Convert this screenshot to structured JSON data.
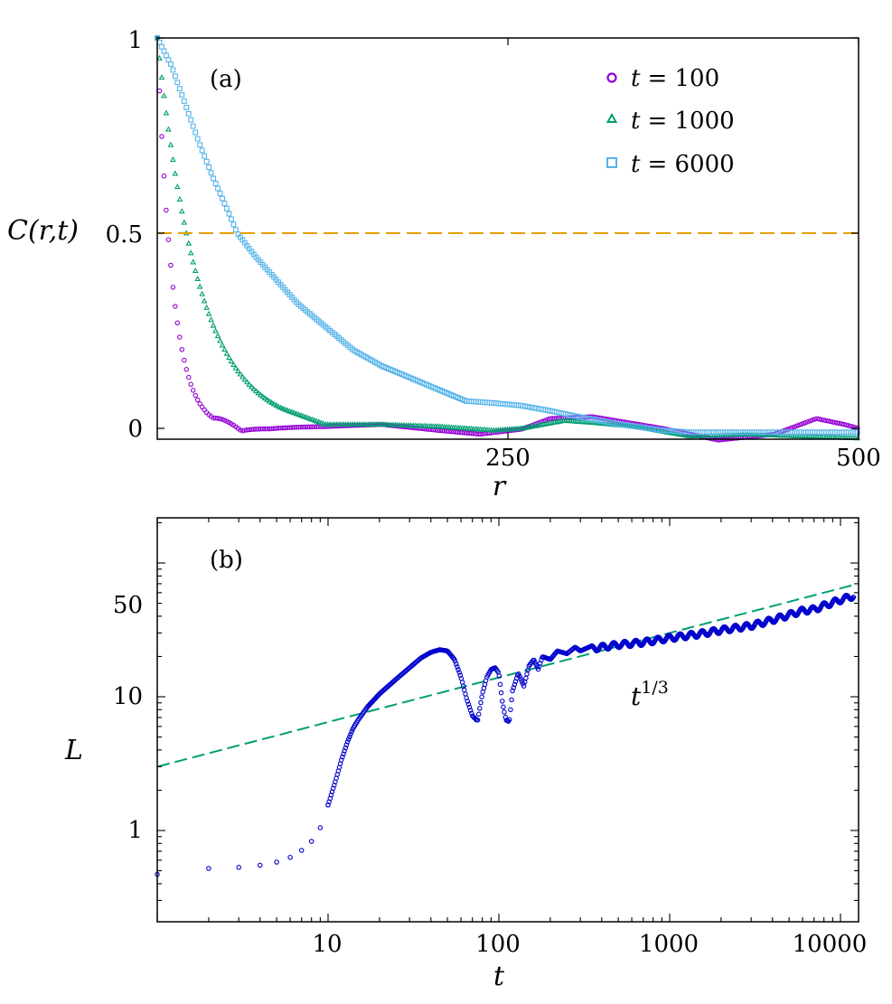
{
  "chart_data": [
    {
      "panel": "(a)",
      "type": "scatter",
      "xlabel": "r",
      "ylabel": "C(r,t)",
      "xlim": [
        0,
        500
      ],
      "ylim": [
        -0.02,
        1.0
      ],
      "xticks": [
        "250",
        "500"
      ],
      "yticks": [
        "0",
        "0.5",
        "1"
      ],
      "legend_position": "top-right",
      "reference_line": {
        "y": 0.5,
        "style": "dashed",
        "color": "#e69f00"
      },
      "series": [
        {
          "name": "t = 100",
          "label_var": "t",
          "label_val": "= 100",
          "marker": "circle",
          "color": "#9400d3",
          "r_scale": 11,
          "tail": [
            [
              40,
              0.09
            ],
            [
              60,
              0.01
            ],
            [
              80,
              0.003
            ],
            [
              120,
              0.005
            ],
            [
              160,
              0.01
            ],
            [
              200,
              -0.005
            ],
            [
              230,
              -0.015
            ],
            [
              260,
              -0.002
            ],
            [
              280,
              0.025
            ],
            [
              310,
              0.03
            ],
            [
              360,
              0.0
            ],
            [
              400,
              -0.03
            ],
            [
              440,
              -0.015
            ],
            [
              470,
              0.025
            ],
            [
              490,
              0.01
            ],
            [
              500,
              0.0
            ]
          ]
        },
        {
          "name": "t = 1000",
          "label_var": "t",
          "label_val": "= 1000",
          "marker": "triangle",
          "color": "#009e73",
          "r_scale": 30,
          "tail": [
            [
              90,
              0.05
            ],
            [
              120,
              0.01
            ],
            [
              160,
              0.01
            ],
            [
              200,
              0.005
            ],
            [
              240,
              -0.005
            ],
            [
              260,
              0.0
            ],
            [
              290,
              0.02
            ],
            [
              310,
              0.015
            ],
            [
              340,
              0.005
            ],
            [
              380,
              -0.02
            ],
            [
              420,
              -0.015
            ],
            [
              460,
              -0.02
            ],
            [
              500,
              -0.025
            ]
          ]
        },
        {
          "name": "t = 6000",
          "label_var": "t",
          "label_val": "= 6000",
          "marker": "square",
          "color": "#56b4e9",
          "points": [
            [
              0,
              1.0
            ],
            [
              10,
              0.93
            ],
            [
              20,
              0.83
            ],
            [
              30,
              0.73
            ],
            [
              40,
              0.64
            ],
            [
              50,
              0.56
            ],
            [
              57,
              0.5
            ],
            [
              70,
              0.44
            ],
            [
              85,
              0.38
            ],
            [
              100,
              0.32
            ],
            [
              120,
              0.26
            ],
            [
              140,
              0.2
            ],
            [
              160,
              0.16
            ],
            [
              180,
              0.13
            ],
            [
              200,
              0.1
            ],
            [
              220,
              0.07
            ],
            [
              240,
              0.065
            ],
            [
              260,
              0.058
            ],
            [
              280,
              0.045
            ],
            [
              300,
              0.03
            ],
            [
              330,
              0.01
            ],
            [
              360,
              -0.005
            ],
            [
              380,
              -0.01
            ],
            [
              420,
              -0.01
            ],
            [
              460,
              -0.01
            ],
            [
              500,
              -0.01
            ]
          ]
        }
      ]
    },
    {
      "panel": "(b)",
      "type": "scatter",
      "xscale": "log",
      "yscale": "log",
      "xlabel": "t",
      "ylabel": "L",
      "xlim": [
        1,
        12000
      ],
      "ylim": [
        0.25,
        200
      ],
      "xticks": [
        "10",
        "100",
        "1000",
        "10000"
      ],
      "yticks": [
        "1",
        "10",
        "50"
      ],
      "fit_label_base": "t",
      "fit_label_exp": "1/3",
      "fit_line": {
        "slope": 0.3333,
        "prefactor": 3.0,
        "style": "dashed",
        "color": "#009e73"
      },
      "series": [
        {
          "name": "L(t)",
          "marker": "circle",
          "color": "#0000cd",
          "early_points": [
            [
              1,
              0.47
            ],
            [
              2,
              0.52
            ],
            [
              3,
              0.53
            ],
            [
              4,
              0.55
            ],
            [
              5,
              0.58
            ],
            [
              6,
              0.63
            ],
            [
              7,
              0.71
            ],
            [
              8,
              0.83
            ],
            [
              9,
              1.05
            ],
            [
              10,
              1.55
            ],
            [
              11,
              2.3
            ],
            [
              12,
              3.4
            ],
            [
              13,
              4.6
            ],
            [
              14,
              5.8
            ],
            [
              15,
              6.7
            ],
            [
              17,
              8.4
            ],
            [
              20,
              10.5
            ],
            [
              25,
              13.5
            ],
            [
              30,
              16.5
            ],
            [
              35,
              19.5
            ],
            [
              40,
              21.5
            ],
            [
              45,
              22.5
            ],
            [
              50,
              22.0
            ],
            [
              55,
              19.0
            ],
            [
              60,
              14.0
            ],
            [
              65,
              9.5
            ],
            [
              70,
              7.2
            ],
            [
              75,
              6.6
            ],
            [
              80,
              10.5
            ],
            [
              85,
              14.0
            ],
            [
              90,
              16.0
            ],
            [
              95,
              16.5
            ],
            [
              100,
              15.0
            ],
            [
              105,
              9.0
            ],
            [
              110,
              6.7
            ],
            [
              115,
              6.5
            ],
            [
              120,
              11.0
            ],
            [
              130,
              15.0
            ],
            [
              140,
              12.0
            ],
            [
              150,
              17.0
            ],
            [
              160,
              19.0
            ],
            [
              170,
              16.0
            ],
            [
              180,
              20.0
            ],
            [
              200,
              19.0
            ],
            [
              220,
              22.0
            ],
            [
              250,
              21.0
            ],
            [
              280,
              23.5
            ],
            [
              300,
              22.0
            ],
            [
              350,
              24.0
            ]
          ],
          "late_points": [
            [
              400,
              23.5
            ],
            [
              500,
              24.5
            ],
            [
              700,
              25.5
            ],
            [
              1000,
              27.5
            ],
            [
              1500,
              29.5
            ],
            [
              2000,
              31.5
            ],
            [
              3000,
              34.0
            ],
            [
              4000,
              37.5
            ],
            [
              5000,
              41.0
            ],
            [
              6000,
              44.0
            ],
            [
              7000,
              45.0
            ],
            [
              8000,
              48.0
            ],
            [
              10000,
              53.0
            ],
            [
              12000,
              57.0
            ]
          ]
        }
      ]
    }
  ]
}
